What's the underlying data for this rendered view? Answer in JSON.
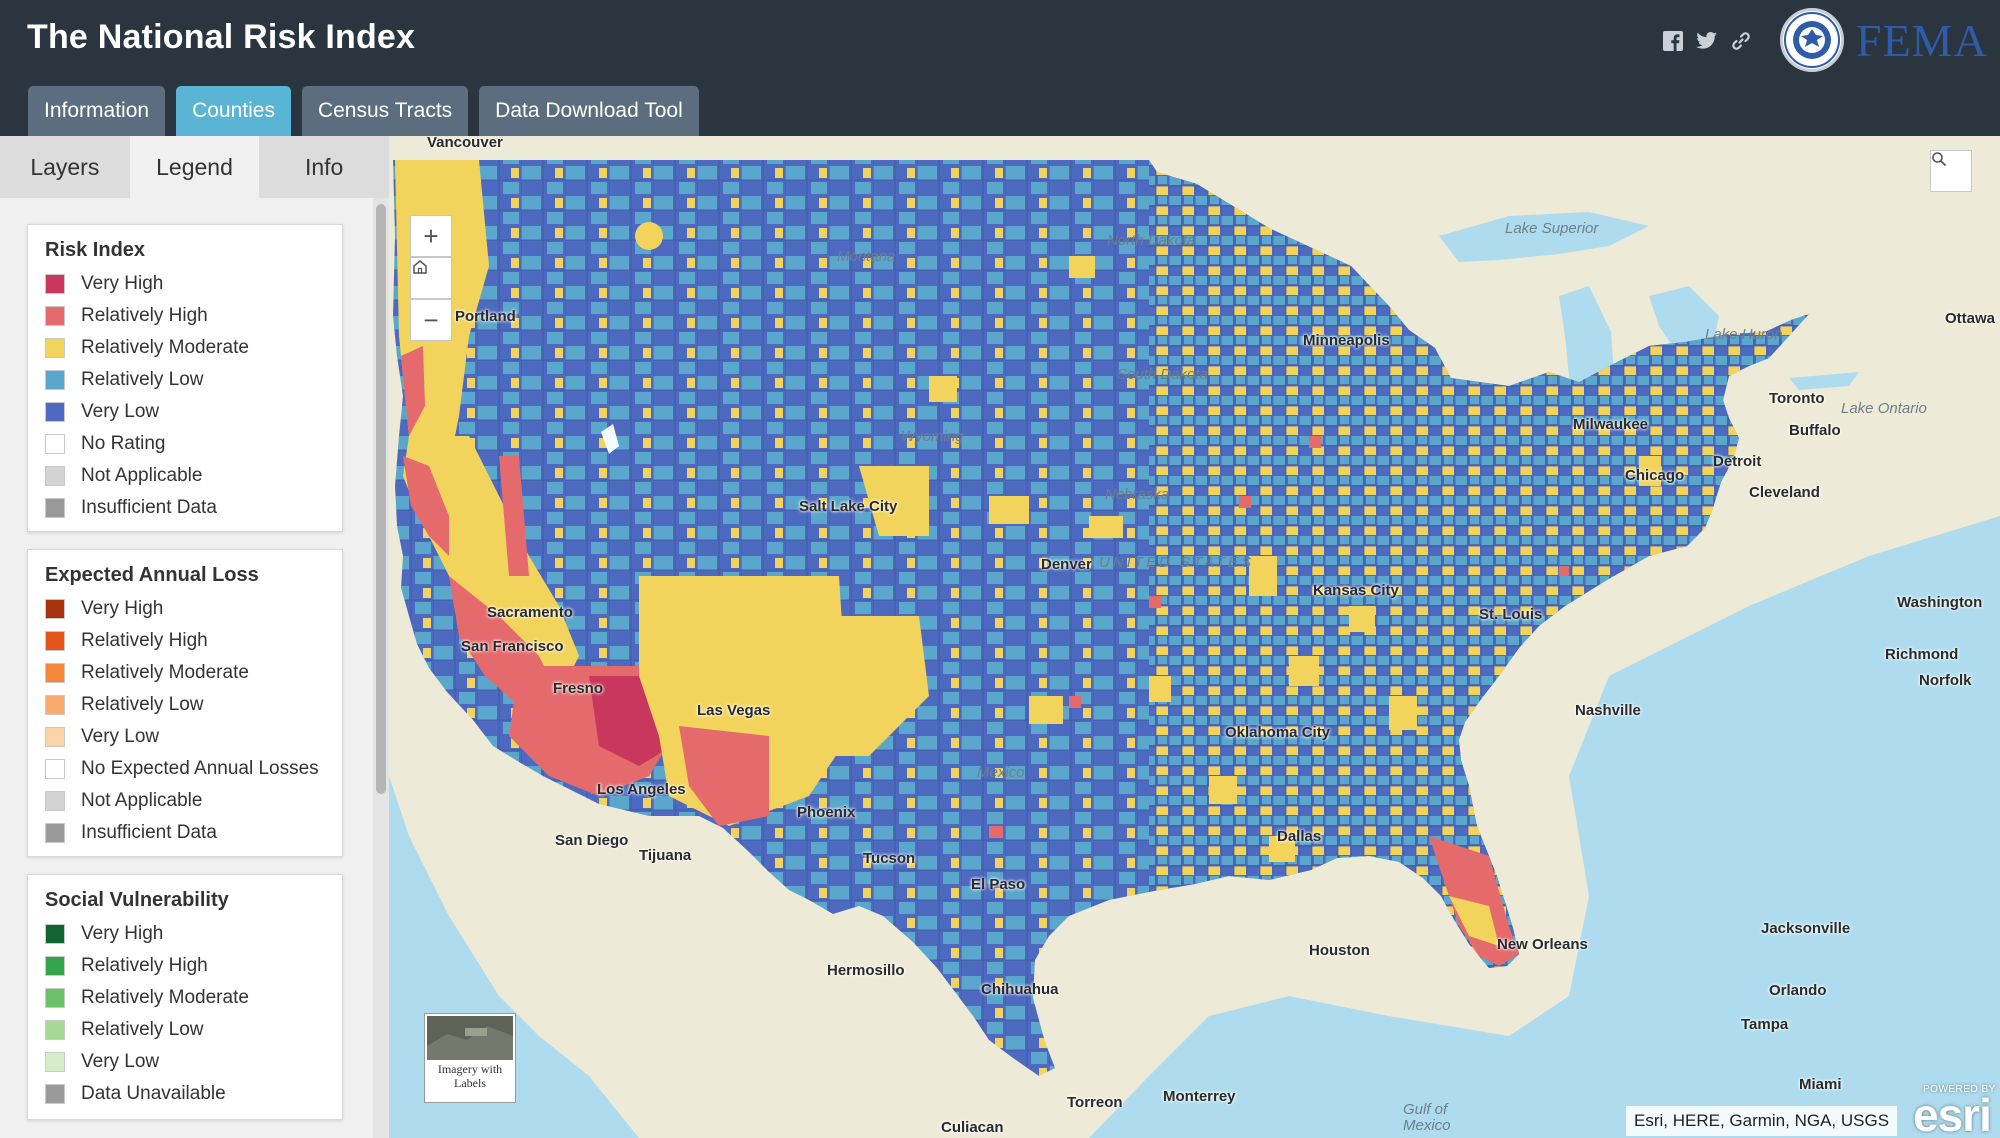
{
  "header": {
    "title": "The National Risk Index",
    "tabs": [
      {
        "label": "Information",
        "active": false
      },
      {
        "label": "Counties",
        "active": true
      },
      {
        "label": "Census Tracts",
        "active": false
      },
      {
        "label": "Data Download Tool",
        "active": false
      }
    ],
    "social_icons": [
      "facebook-icon",
      "twitter-icon",
      "link-icon"
    ],
    "logo_text": "FEMA",
    "seal_text": "DEPARTMENT OF HOMELAND SECURITY"
  },
  "panel": {
    "tabs": [
      {
        "label": "Layers",
        "active": false
      },
      {
        "label": "Legend",
        "active": true
      },
      {
        "label": "Info",
        "active": false
      }
    ],
    "legends": [
      {
        "title": "Risk Index",
        "items": [
          {
            "label": "Very High",
            "color": "#c9385c"
          },
          {
            "label": "Relatively High",
            "color": "#e46a6c"
          },
          {
            "label": "Relatively Moderate",
            "color": "#f2d45c"
          },
          {
            "label": "Relatively Low",
            "color": "#5ba6cc"
          },
          {
            "label": "Very Low",
            "color": "#4d6ac0"
          },
          {
            "label": "No Rating",
            "color": "#ffffff"
          },
          {
            "label": "Not Applicable",
            "color": "#d3d3d3"
          },
          {
            "label": "Insufficient Data",
            "color": "#9a9a9a"
          }
        ]
      },
      {
        "title": "Expected Annual Loss",
        "items": [
          {
            "label": "Very High",
            "color": "#a8320e"
          },
          {
            "label": "Relatively High",
            "color": "#e35417"
          },
          {
            "label": "Relatively Moderate",
            "color": "#f5873d"
          },
          {
            "label": "Relatively Low",
            "color": "#f9aa6c"
          },
          {
            "label": "Very Low",
            "color": "#fdd3a8"
          },
          {
            "label": "No Expected Annual Losses",
            "color": "#ffffff"
          },
          {
            "label": "Not Applicable",
            "color": "#d3d3d3"
          },
          {
            "label": "Insufficient Data",
            "color": "#9a9a9a"
          }
        ]
      },
      {
        "title": "Social Vulnerability",
        "items": [
          {
            "label": "Very High",
            "color": "#12652f"
          },
          {
            "label": "Relatively High",
            "color": "#33a34c"
          },
          {
            "label": "Relatively Moderate",
            "color": "#6cc16a"
          },
          {
            "label": "Relatively Low",
            "color": "#a6d996"
          },
          {
            "label": "Very Low",
            "color": "#d5edc9"
          },
          {
            "label": "Data Unavailable",
            "color": "#9a9a9a"
          }
        ]
      }
    ]
  },
  "map": {
    "zoom_controls": [
      "+",
      "home-icon",
      "−"
    ],
    "basemap_label": "Imagery with Labels",
    "attribution": "Esri, HERE, Garmin, NGA, USGS",
    "esri_powered": "POWERED BY",
    "esri_logo": "esri",
    "labels": [
      {
        "name": "Vancouver",
        "faint": false
      },
      {
        "name": "Ottawa",
        "faint": false
      },
      {
        "name": "Toronto",
        "faint": false
      },
      {
        "name": "Detroit",
        "faint": false
      },
      {
        "name": "Chicago",
        "faint": false
      },
      {
        "name": "Milwaukee",
        "faint": false
      },
      {
        "name": "San Diego",
        "faint": false
      },
      {
        "name": "Tijuana",
        "faint": false
      },
      {
        "name": "Los Angeles",
        "faint": false
      },
      {
        "name": "Hermosillo",
        "faint": false
      },
      {
        "name": "Chihuahua",
        "faint": false
      },
      {
        "name": "Torreon",
        "faint": false
      },
      {
        "name": "Monterrey",
        "faint": false
      },
      {
        "name": "Culiacan",
        "faint": false
      },
      {
        "name": "Jacksonville",
        "faint": false
      },
      {
        "name": "Miami",
        "faint": false
      },
      {
        "name": "Norfolk",
        "faint": false
      },
      {
        "name": "Lake Superior",
        "faint": true
      },
      {
        "name": "Lake Huron",
        "faint": true
      },
      {
        "name": "Lake Ontario",
        "faint": true
      },
      {
        "name": "Gulf of Mexico",
        "faint": true
      },
      {
        "name": "Salt Lake City",
        "faint": false
      },
      {
        "name": "Las Vegas",
        "faint": false
      },
      {
        "name": "Phoenix",
        "faint": false
      },
      {
        "name": "Dallas",
        "faint": false
      },
      {
        "name": "Oklahoma City",
        "faint": false
      },
      {
        "name": "Kansas City",
        "faint": false
      },
      {
        "name": "Denver",
        "faint": false
      },
      {
        "name": "El Paso",
        "faint": false
      },
      {
        "name": "New Orleans",
        "faint": false
      },
      {
        "name": "Nashville",
        "faint": false
      },
      {
        "name": "Washington",
        "faint": false
      },
      {
        "name": "Richmond",
        "faint": false
      },
      {
        "name": "Cleveland",
        "faint": false
      },
      {
        "name": "Buffalo",
        "faint": false
      },
      {
        "name": "Portland",
        "faint": false
      },
      {
        "name": "Sacramento",
        "faint": false
      },
      {
        "name": "San Francisco",
        "faint": false
      },
      {
        "name": "Fresno",
        "faint": false
      },
      {
        "name": "Tucson",
        "faint": false
      },
      {
        "name": "Houston",
        "faint": false
      },
      {
        "name": "Tampa",
        "faint": false
      },
      {
        "name": "Orlando",
        "faint": false
      },
      {
        "name": "Minneapolis",
        "faint": false
      },
      {
        "name": "St. Louis",
        "faint": false
      },
      {
        "name": "Mexico",
        "faint": false
      },
      {
        "name": "Wyoming",
        "faint": false
      },
      {
        "name": "Montana",
        "faint": false
      },
      {
        "name": "North Dakota",
        "faint": false
      },
      {
        "name": "South Dakota",
        "faint": false
      },
      {
        "name": "Nebraska",
        "faint": false
      },
      {
        "name": "UNITED STATES",
        "faint": false
      }
    ]
  }
}
